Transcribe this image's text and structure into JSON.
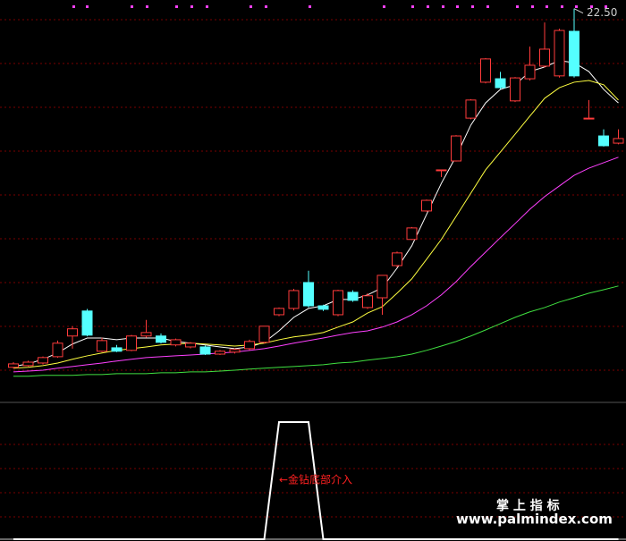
{
  "chart_data": [
    {
      "type": "candlestick",
      "annotation": "22.50",
      "up_color": "#ff3b3b",
      "down_color": "#54ffff",
      "ylim": [
        8.8,
        22.8
      ],
      "grid": true,
      "open": [
        10.02,
        10.08,
        10.17,
        10.39,
        11.11,
        11.98,
        10.58,
        10.7,
        10.61,
        11.11,
        11.11,
        10.8,
        10.73,
        10.73,
        10.48,
        10.55,
        10.67,
        10.89,
        11.85,
        12.07,
        12.97,
        12.16,
        11.85,
        12.63,
        12.1,
        12.44,
        13.56,
        14.47,
        15.46,
        16.89,
        17.2,
        18.69,
        19.94,
        20.06,
        19.29,
        20.06,
        20.5,
        20.16,
        21.71,
        18.69,
        18.07,
        17.82
      ],
      "high": [
        10.2,
        10.25,
        10.4,
        10.95,
        11.45,
        12.05,
        11.05,
        10.8,
        11.15,
        11.67,
        11.2,
        11.02,
        10.9,
        10.78,
        10.62,
        10.68,
        10.98,
        11.45,
        12.1,
        12.75,
        13.38,
        12.2,
        12.72,
        12.7,
        12.6,
        13.22,
        14.05,
        14.9,
        15.86,
        16.89,
        18.1,
        19.35,
        20.78,
        20.3,
        20.12,
        21.18,
        22.02,
        21.8,
        22.5,
        19.32,
        18.3,
        18.3
      ],
      "low": [
        9.98,
        10.05,
        10.12,
        10.35,
        10.67,
        11.1,
        10.55,
        10.55,
        10.58,
        11.05,
        10.85,
        10.75,
        10.68,
        10.45,
        10.45,
        10.5,
        10.62,
        10.85,
        11.8,
        12.0,
        12.1,
        11.98,
        11.8,
        12.3,
        12.05,
        11.85,
        13.5,
        14.45,
        15.43,
        16.64,
        17.18,
        18.65,
        19.9,
        19.7,
        19.25,
        20.0,
        20.45,
        20.1,
        20.1,
        18.69,
        17.7,
        17.78
      ],
      "close": [
        10.14,
        10.2,
        10.36,
        10.86,
        11.36,
        11.14,
        10.95,
        10.58,
        11.11,
        11.23,
        10.89,
        10.98,
        10.86,
        10.48,
        10.58,
        10.64,
        10.92,
        11.45,
        12.07,
        12.69,
        12.16,
        12.04,
        12.69,
        12.35,
        12.51,
        13.22,
        14.0,
        14.87,
        15.83,
        16.89,
        18.07,
        19.32,
        20.75,
        19.75,
        20.09,
        20.53,
        21.09,
        21.74,
        20.16,
        18.69,
        17.73,
        17.98
      ],
      "series": [
        {
          "color": "#ffffff",
          "values": [
            10.05,
            10.14,
            10.3,
            10.52,
            10.83,
            11.04,
            11.04,
            10.98,
            11.04,
            11.04,
            11.04,
            10.92,
            10.86,
            10.8,
            10.73,
            10.67,
            10.73,
            10.89,
            11.29,
            11.76,
            12.07,
            12.16,
            12.38,
            12.38,
            12.54,
            12.79,
            13.47,
            14.25,
            15.34,
            16.42,
            17.36,
            18.45,
            19.22,
            19.69,
            19.85,
            20.31,
            20.47,
            20.69,
            20.62,
            20.31,
            19.69,
            19.22
          ]
        },
        {
          "color": "#ffff40",
          "values": [
            9.99,
            10.02,
            10.08,
            10.17,
            10.3,
            10.42,
            10.52,
            10.61,
            10.67,
            10.73,
            10.8,
            10.83,
            10.86,
            10.83,
            10.8,
            10.76,
            10.8,
            10.86,
            10.98,
            11.08,
            11.14,
            11.23,
            11.42,
            11.6,
            11.91,
            12.13,
            12.6,
            13.1,
            13.78,
            14.47,
            15.27,
            16.08,
            16.89,
            17.51,
            18.13,
            18.76,
            19.38,
            19.75,
            19.94,
            20.0,
            19.85,
            19.32
          ]
        },
        {
          "color": "#ff40ff",
          "values": [
            9.86,
            9.89,
            9.92,
            9.99,
            10.05,
            10.11,
            10.17,
            10.24,
            10.3,
            10.36,
            10.39,
            10.42,
            10.45,
            10.48,
            10.52,
            10.55,
            10.61,
            10.67,
            10.76,
            10.86,
            10.95,
            11.04,
            11.14,
            11.23,
            11.29,
            11.42,
            11.6,
            11.85,
            12.16,
            12.54,
            13.0,
            13.53,
            14.03,
            14.53,
            15.02,
            15.52,
            15.96,
            16.33,
            16.7,
            16.95,
            17.14,
            17.33
          ]
        },
        {
          "color": "#40e040",
          "values": [
            9.71,
            9.71,
            9.74,
            9.74,
            9.74,
            9.77,
            9.77,
            9.8,
            9.8,
            9.8,
            9.83,
            9.83,
            9.86,
            9.86,
            9.89,
            9.92,
            9.96,
            9.99,
            10.02,
            10.05,
            10.08,
            10.11,
            10.17,
            10.2,
            10.27,
            10.33,
            10.39,
            10.48,
            10.61,
            10.76,
            10.92,
            11.11,
            11.32,
            11.54,
            11.76,
            11.95,
            12.1,
            12.29,
            12.44,
            12.6,
            12.72,
            12.85
          ]
        }
      ]
    },
    {
      "type": "line",
      "annotation": "←金钻底部介入",
      "color": "#ffffff",
      "ylim": [
        0,
        1
      ],
      "grid": true,
      "values": [
        0,
        0,
        0,
        0,
        0,
        0,
        0,
        0,
        0,
        0,
        0,
        0,
        0,
        0,
        0,
        0,
        0,
        0,
        1,
        1,
        1,
        0,
        0,
        0,
        0,
        0,
        0,
        0,
        0,
        0,
        0,
        0,
        0,
        0,
        0,
        0,
        0,
        0,
        0,
        0,
        0,
        0
      ]
    }
  ],
  "watermark": {
    "title": "掌 上 指 标",
    "url": "www.palmindex.com"
  }
}
